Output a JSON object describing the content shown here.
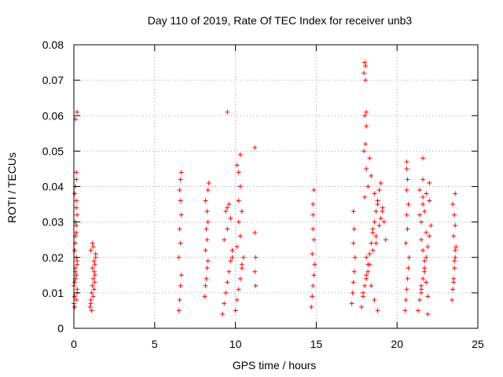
{
  "chart_data": {
    "type": "scatter",
    "title": "Day 110 of 2019, Rate Of TEC Index for receiver unb3",
    "xlabel": "GPS time / hours",
    "ylabel": "ROTI / TECUs",
    "xlim": [
      0,
      25
    ],
    "ylim": [
      0,
      0.08
    ],
    "x_ticks": [
      "0",
      "5",
      "10",
      "15",
      "20",
      "25"
    ],
    "y_ticks": [
      "0",
      "0.01",
      "0.02",
      "0.03",
      "0.04",
      "0.05",
      "0.06",
      "0.07",
      "0.08"
    ],
    "grid": true,
    "marker": "+",
    "color": "#ff0000",
    "series": [
      {
        "x": [
          0.0,
          0.05,
          0.1,
          0.15,
          0.2,
          0.0,
          0.1,
          0.2,
          0.05,
          0.15,
          0.1,
          0.15,
          0.2,
          0.1,
          0.15,
          0.05,
          0.1,
          0.15,
          0.2,
          0.05,
          0.1,
          0.15,
          0.15,
          0.15,
          0.1,
          0.2,
          0.05,
          0.1,
          0.15,
          0.2,
          1.0,
          1.05,
          1.1,
          1.15,
          1.2,
          1.25,
          1.3,
          1.35,
          1.05,
          1.15,
          1.25,
          1.3,
          1.1,
          1.2,
          1.3,
          1.15,
          1.25,
          1.35,
          1.05,
          1.2,
          6.5,
          6.55,
          6.6,
          6.65,
          6.5,
          6.6,
          6.55,
          6.65,
          6.6,
          6.55,
          6.6,
          6.65,
          8.1,
          8.15,
          8.2,
          8.25,
          8.3,
          8.15,
          8.25,
          8.2,
          8.3,
          8.25,
          8.15,
          8.3,
          8.35,
          9.2,
          9.3,
          9.4,
          9.5,
          9.6,
          9.7,
          9.8,
          9.3,
          9.5,
          9.7,
          9.4,
          9.6,
          9.5,
          9.8,
          9.5,
          10.0,
          10.1,
          10.2,
          10.3,
          10.4,
          10.5,
          10.1,
          10.3,
          10.2,
          10.4,
          10.2,
          10.3,
          10.2,
          10.3,
          10.1,
          10.4,
          11.2,
          11.25,
          11.2,
          11.25,
          11.2,
          14.7,
          14.75,
          14.8,
          14.85,
          14.9,
          14.75,
          14.85,
          14.8,
          14.8,
          14.8,
          14.85,
          17.2,
          17.25,
          17.3,
          17.35,
          17.4,
          17.3,
          17.35,
          17.3,
          17.8,
          17.9,
          18.0,
          18.1,
          18.2,
          18.3,
          18.4,
          18.5,
          18.6,
          18.7,
          18.8,
          18.9,
          19.0,
          19.1,
          19.2,
          19.3,
          17.9,
          18.1,
          18.3,
          18.5,
          18.7,
          18.9,
          19.1,
          18.0,
          18.2,
          18.4,
          18.6,
          18.8,
          19.0,
          18.1,
          18.3,
          18.5,
          18.7,
          18.1,
          18.2,
          18.4,
          18.6,
          18.8,
          17.95,
          18.05,
          18.1,
          18.0,
          18.1,
          17.95,
          18.05,
          18.0,
          18.05,
          20.5,
          20.55,
          20.6,
          20.65,
          20.7,
          20.75,
          20.55,
          20.65,
          20.6,
          20.7,
          20.6,
          20.65,
          20.6,
          20.6,
          21.3,
          21.4,
          21.5,
          21.6,
          21.7,
          21.8,
          21.9,
          22.0,
          22.1,
          21.4,
          21.6,
          21.8,
          22.0,
          21.5,
          21.7,
          21.9,
          21.6,
          21.8,
          21.5,
          21.7,
          22.0,
          21.4,
          21.6,
          21.9,
          21.7,
          21.5,
          21.8,
          21.6,
          21.6,
          21.5,
          23.4,
          23.45,
          23.5,
          23.55,
          23.6,
          23.65,
          23.5,
          23.6,
          23.55,
          23.45,
          23.6,
          23.5,
          23.55,
          23.6
        ],
        "y": [
          0.012,
          0.009,
          0.014,
          0.008,
          0.011,
          0.007,
          0.016,
          0.01,
          0.013,
          0.02,
          0.024,
          0.027,
          0.018,
          0.03,
          0.034,
          0.038,
          0.04,
          0.036,
          0.032,
          0.022,
          0.026,
          0.029,
          0.044,
          0.042,
          0.059,
          0.061,
          0.006,
          0.017,
          0.015,
          0.019,
          0.006,
          0.008,
          0.01,
          0.012,
          0.014,
          0.016,
          0.018,
          0.02,
          0.022,
          0.024,
          0.011,
          0.013,
          0.005,
          0.009,
          0.015,
          0.017,
          0.019,
          0.021,
          0.007,
          0.023,
          0.005,
          0.008,
          0.012,
          0.015,
          0.02,
          0.024,
          0.028,
          0.032,
          0.036,
          0.039,
          0.042,
          0.044,
          0.009,
          0.012,
          0.014,
          0.017,
          0.019,
          0.022,
          0.025,
          0.028,
          0.03,
          0.033,
          0.036,
          0.039,
          0.041,
          0.004,
          0.007,
          0.01,
          0.013,
          0.016,
          0.019,
          0.022,
          0.025,
          0.028,
          0.031,
          0.033,
          0.035,
          0.034,
          0.02,
          0.061,
          0.005,
          0.008,
          0.011,
          0.014,
          0.017,
          0.02,
          0.023,
          0.026,
          0.03,
          0.033,
          0.036,
          0.04,
          0.044,
          0.049,
          0.046,
          0.018,
          0.027,
          0.02,
          0.016,
          0.012,
          0.051,
          0.006,
          0.009,
          0.012,
          0.015,
          0.018,
          0.021,
          0.025,
          0.028,
          0.032,
          0.035,
          0.039,
          0.007,
          0.01,
          0.013,
          0.016,
          0.02,
          0.024,
          0.028,
          0.033,
          0.006,
          0.009,
          0.012,
          0.015,
          0.018,
          0.021,
          0.024,
          0.027,
          0.03,
          0.033,
          0.036,
          0.039,
          0.041,
          0.034,
          0.03,
          0.025,
          0.01,
          0.014,
          0.018,
          0.022,
          0.026,
          0.029,
          0.033,
          0.037,
          0.04,
          0.043,
          0.038,
          0.035,
          0.031,
          0.045,
          0.048,
          0.028,
          0.024,
          0.02,
          0.016,
          0.012,
          0.008,
          0.005,
          0.05,
          0.052,
          0.057,
          0.06,
          0.061,
          0.072,
          0.074,
          0.075,
          0.07,
          0.005,
          0.008,
          0.011,
          0.014,
          0.017,
          0.02,
          0.024,
          0.028,
          0.032,
          0.035,
          0.039,
          0.042,
          0.045,
          0.047,
          0.005,
          0.008,
          0.011,
          0.014,
          0.017,
          0.02,
          0.023,
          0.026,
          0.029,
          0.032,
          0.035,
          0.038,
          0.041,
          0.012,
          0.016,
          0.009,
          0.022,
          0.027,
          0.03,
          0.033,
          0.036,
          0.039,
          0.042,
          0.004,
          0.019,
          0.025,
          0.013,
          0.037,
          0.048,
          0.01,
          0.008,
          0.011,
          0.014,
          0.017,
          0.02,
          0.023,
          0.026,
          0.029,
          0.032,
          0.035,
          0.038,
          0.013,
          0.019,
          0.022
        ]
      }
    ]
  }
}
